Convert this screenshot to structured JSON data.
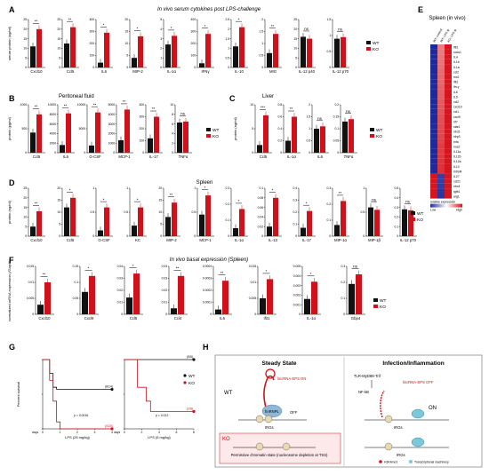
{
  "colors": {
    "wt": "#111111",
    "ko": "#d0101a",
    "heat_low": "#1f2a9a",
    "heat_high": "#d8141e"
  },
  "legend": {
    "wt": "WT",
    "ko": "KO"
  },
  "panels": {
    "A": {
      "letter": "A",
      "title": "In vivo serum cytokines post LPS-challenge",
      "ylabel": "serum protein (ng/ml)",
      "groups": [
        {
          "cat": "Cxcl10",
          "ymax": 25,
          "ticks": [
            0,
            5,
            10,
            15,
            20,
            25
          ],
          "wt": 11,
          "ko": 20,
          "sig": "**"
        },
        {
          "cat": "Ccl5",
          "ymax": 25,
          "ticks": [
            0,
            5,
            10,
            15,
            20,
            25
          ],
          "wt": 12.5,
          "ko": 21,
          "sig": "**"
        },
        {
          "cat": "IL6",
          "ymax": 400,
          "ticks": [
            0,
            100,
            200,
            300,
            400
          ],
          "wt": 40,
          "ko": 290,
          "sig": "*"
        },
        {
          "cat": "MIP-2",
          "ymax": 20,
          "ticks": [
            0,
            5,
            10,
            15,
            20
          ],
          "wt": 4,
          "ko": 13,
          "sig": "*"
        },
        {
          "cat": "IL-1α",
          "ymax": 5,
          "ticks": [
            0,
            1,
            2,
            3,
            4,
            5
          ],
          "wt": 2.4,
          "ko": 3.3,
          "sig": "*"
        },
        {
          "cat": "IFNγ",
          "ymax": 400,
          "ticks": [
            0,
            100,
            200,
            300,
            400
          ],
          "wt": 35,
          "ko": 280,
          "sig": "*"
        },
        {
          "cat": "IL-10",
          "ymax": 2.5,
          "ticks": [
            0,
            0.5,
            1.0,
            1.5,
            2.0,
            2.5
          ],
          "wt": 1.1,
          "ko": 2.1,
          "sig": "*"
        },
        {
          "cat": "MIG",
          "ymax": 2,
          "ticks": [
            0,
            0.5,
            1.0,
            1.5,
            2.0
          ],
          "wt": 0.6,
          "ko": 1.4,
          "sig": "**"
        },
        {
          "cat": "IL-12 p40",
          "ymax": 25,
          "ticks": [
            0,
            5,
            10,
            15,
            20,
            25
          ],
          "wt": 16,
          "ko": 15,
          "sig": "ns"
        },
        {
          "cat": "IL-12 p70",
          "ymax": 1.5,
          "ticks": [
            0,
            0.5,
            1.0,
            1.5
          ],
          "wt": 0.9,
          "ko": 0.95,
          "sig": "ns"
        }
      ]
    },
    "B": {
      "letter": "B",
      "title": "Peritoneal fluid",
      "ylabel": "protein (pg/ml)",
      "groups": [
        {
          "cat": "Ccl5",
          "ymax": 1000,
          "ticks": [
            0,
            500,
            1000
          ],
          "wt": 420,
          "ko": 800,
          "sig": "**"
        },
        {
          "cat": "IL6",
          "ymax": 10000,
          "ticks": [
            0,
            2000,
            4000,
            6000,
            8000,
            10000
          ],
          "wt": 1600,
          "ko": 8200,
          "sig": "**"
        },
        {
          "cat": "G-CSF",
          "ymax": 10000,
          "ticks": [
            0,
            5000,
            10000
          ],
          "wt": 1500,
          "ko": 8400,
          "sig": "**"
        },
        {
          "cat": "MCP-1",
          "ymax": 5000,
          "ticks": [
            0,
            1000,
            2000,
            3000,
            4000,
            5000
          ],
          "wt": 1300,
          "ko": 4500,
          "sig": "**"
        },
        {
          "cat": "IL-17",
          "ymax": 400,
          "ticks": [
            0,
            100,
            200,
            300,
            400
          ],
          "wt": 120,
          "ko": 300,
          "sig": "**"
        },
        {
          "cat": "TNFα",
          "ymax": 10,
          "ticks": [
            0,
            2,
            4,
            6,
            8,
            10
          ],
          "wt": 6.3,
          "ko": 6.5,
          "sig": "ns"
        }
      ]
    },
    "C": {
      "letter": "C",
      "title": "Liver",
      "ylabel": "protein (ng/ml)",
      "groups": [
        {
          "cat": "Ccl5",
          "ymax": 10,
          "ticks": [
            0,
            5,
            10
          ],
          "wt": 1.6,
          "ko": 7.8,
          "sig": "***"
        },
        {
          "cat": "IL-1α",
          "ymax": 0.8,
          "ticks": [
            0,
            0.2,
            0.4,
            0.6,
            0.8
          ],
          "wt": 0.2,
          "ko": 0.6,
          "sig": "**"
        },
        {
          "cat": "IL6",
          "ymax": 2.0,
          "ticks": [
            0,
            0.5,
            1.0,
            1.5,
            2.0
          ],
          "wt": 1.0,
          "ko": 1.1,
          "sig": "ns"
        },
        {
          "cat": "TNFα",
          "ymax": 0.2,
          "ticks": [
            0,
            0.05,
            0.1,
            0.15,
            0.2
          ],
          "wt": 0.13,
          "ko": 0.14,
          "sig": "ns"
        }
      ]
    },
    "D": {
      "letter": "D",
      "title": "Spleen",
      "ylabel": "protein (ng/ml)",
      "groups": [
        {
          "cat": "Cxcl10",
          "ymax": 25,
          "ticks": [
            0,
            5,
            10,
            15,
            20,
            25
          ],
          "wt": 5,
          "ko": 13,
          "sig": "**"
        },
        {
          "cat": "Ccl5",
          "ymax": 20,
          "ticks": [
            0,
            5,
            10,
            15,
            20
          ],
          "wt": 12,
          "ko": 16,
          "sig": "*"
        },
        {
          "cat": "G-CSF",
          "ymax": 1.0,
          "ticks": [
            0,
            0.5,
            1.0
          ],
          "wt": 0.12,
          "ko": 0.6,
          "sig": "*"
        },
        {
          "cat": "KC",
          "ymax": 1.0,
          "ticks": [
            0,
            0.5,
            1.0
          ],
          "wt": 0.22,
          "ko": 0.6,
          "sig": "*"
        },
        {
          "cat": "MIP-2",
          "ymax": 20,
          "ticks": [
            0,
            5,
            10,
            15,
            20
          ],
          "wt": 8,
          "ko": 14,
          "sig": "**"
        },
        {
          "cat": "MCP-1",
          "ymax": 1.0,
          "ticks": [
            0,
            0.5,
            1.0
          ],
          "wt": 0.45,
          "ko": 0.85,
          "sig": "*"
        },
        {
          "cat": "IL-1α",
          "ymax": 0.3,
          "ticks": [
            0,
            0.1,
            0.2,
            0.3
          ],
          "wt": 0.05,
          "ko": 0.17,
          "sig": "*"
        },
        {
          "cat": "IL-13",
          "ymax": 0.1,
          "ticks": [
            0,
            0.02,
            0.04,
            0.06,
            0.08,
            0.1
          ],
          "wt": 0.02,
          "ko": 0.08,
          "sig": "*"
        },
        {
          "cat": "IL-17",
          "ymax": 0.4,
          "ticks": [
            0,
            0.1,
            0.2,
            0.3,
            0.4
          ],
          "wt": 0.07,
          "ko": 0.21,
          "sig": "*"
        },
        {
          "cat": "MIP-1α",
          "ymax": 0.3,
          "ticks": [
            0,
            0.1,
            0.2,
            0.3
          ],
          "wt": 0.07,
          "ko": 0.22,
          "sig": "**"
        },
        {
          "cat": "MIP-1β",
          "ymax": 1.0,
          "ticks": [
            0,
            0.5,
            1.0
          ],
          "wt": 0.6,
          "ko": 0.55,
          "sig": "ns"
        },
        {
          "cat": "IL-12 p70",
          "ymax": 0.5,
          "ticks": [
            0,
            0.1,
            0.2,
            0.3,
            0.4,
            0.5
          ],
          "wt": 0.28,
          "ko": 0.27,
          "sig": "ns"
        }
      ]
    },
    "E": {
      "letter": "E",
      "title": "Spleen (in vivo)",
      "columns": [
        "WT: control",
        "WT: LPS ip",
        "KO: LPS ip"
      ],
      "genes": [
        "lfit1",
        "socs1",
        "IL4",
        "IL1b",
        "IL1a",
        "ccl2",
        "mx2",
        "ifit1",
        "ifn-γ",
        "IL6",
        "IL5",
        "ccl2",
        "cxcl10",
        "ccl1",
        "cxcl9",
        "irf7",
        "stat1",
        "nlrc5",
        "nlrp3",
        "tnfa",
        "nos2",
        "IL11a",
        "IL12b",
        "IL12a",
        "IL10",
        "tnfrsf4",
        "IL27",
        "ccl21",
        "nlrc4",
        "tgfb1",
        "arg1"
      ],
      "legend_label": "relative expression",
      "legend_low": "Low",
      "legend_high": "High"
    },
    "F": {
      "letter": "F",
      "title": "In vivo basal expression (Spleen)",
      "ylabel": "normalized mRNA expression (/Gapdh)",
      "groups": [
        {
          "cat": "Cxcl10",
          "ymax": 0.015,
          "ticks": [
            0,
            0.005,
            0.01,
            0.015
          ],
          "wt": 0.003,
          "ko": 0.01,
          "sig": "**"
        },
        {
          "cat": "Cxcl9",
          "ymax": 0.15,
          "ticks": [
            0,
            0.05,
            0.1,
            0.15
          ],
          "wt": 0.07,
          "ko": 0.12,
          "sig": "*"
        },
        {
          "cat": "Ccl5",
          "ymax": 0.04,
          "ticks": [
            0,
            0.01,
            0.02,
            0.03,
            0.04
          ],
          "wt": 0.014,
          "ko": 0.034,
          "sig": "*"
        },
        {
          "cat": "Ccl4",
          "ymax": 0.04,
          "ticks": [
            0,
            0.01,
            0.02,
            0.03,
            0.04
          ],
          "wt": 0.005,
          "ko": 0.032,
          "sig": "**"
        },
        {
          "cat": "IL6",
          "ymax": 0.0004,
          "ticks": [
            0,
            0.0001,
            0.0002,
            0.0003,
            0.0004
          ],
          "wt": 4e-05,
          "ko": 0.00028,
          "sig": "**"
        },
        {
          "cat": "Ifit1",
          "ymax": 0.015,
          "ticks": [
            0,
            0.005,
            0.01,
            0.015
          ],
          "wt": 0.005,
          "ko": 0.011,
          "sig": "*"
        },
        {
          "cat": "IL-1α",
          "ymax": 0.005,
          "ticks": [
            0,
            0.001,
            0.002,
            0.003,
            0.004,
            0.005
          ],
          "wt": 0.0016,
          "ko": 0.0034,
          "sig": "*"
        },
        {
          "cat": "Gbp4",
          "ymax": 0.3,
          "ticks": [
            0,
            0.1,
            0.2,
            0.3
          ],
          "wt": 0.19,
          "ko": 0.25,
          "sig": "ns"
        }
      ]
    },
    "G": {
      "letter": "G",
      "ylabel": "Percent survival",
      "xlabel_days": "days",
      "plots": [
        {
          "xlabel": "LPS (25 mg/kg)",
          "xticks": [
            0,
            1,
            2,
            3,
            4
          ],
          "wt_label": "(8/14)",
          "ko_label": "(0/20)",
          "p": "p = 0.0016",
          "wt": [
            [
              0,
              100
            ],
            [
              0.4,
              100
            ],
            [
              0.4,
              80
            ],
            [
              0.6,
              80
            ],
            [
              0.6,
              60
            ],
            [
              0.8,
              60
            ],
            [
              0.8,
              57
            ],
            [
              4,
              57
            ]
          ],
          "ko": [
            [
              0,
              100
            ],
            [
              0.4,
              100
            ],
            [
              0.4,
              70
            ],
            [
              0.6,
              70
            ],
            [
              0.6,
              40
            ],
            [
              0.8,
              40
            ],
            [
              0.8,
              10
            ],
            [
              1,
              10
            ],
            [
              1,
              0
            ],
            [
              4,
              0
            ]
          ]
        },
        {
          "xlabel": "LPS (5 mg/kg)",
          "xticks": [
            0,
            2,
            4,
            6,
            8
          ],
          "wt_label": "(5/5)",
          "ko_label": "(2/8)",
          "p": "p = 0.012",
          "wt": [
            [
              0,
              100
            ],
            [
              8,
              100
            ]
          ],
          "ko": [
            [
              0,
              100
            ],
            [
              1.5,
              100
            ],
            [
              1.5,
              60
            ],
            [
              2.5,
              60
            ],
            [
              2.5,
              40
            ],
            [
              3,
              40
            ],
            [
              3,
              25
            ],
            [
              8,
              25
            ]
          ]
        }
      ]
    },
    "H": {
      "letter": "H",
      "steady": "Steady State",
      "infection": "Infection/Inflammation",
      "wt": "WT",
      "ko": "KO",
      "lnc_on": "lincRNA-EPS ON",
      "lnc_off": "lincRNA-EPS OFF",
      "hnrnp": "hnRNPL",
      "off": "OFF",
      "on": "ON",
      "irgs": "IRGs",
      "pathway": "TLR-MyD88-Trif",
      "nfkb": "NF-kB",
      "ko_note": "Permissive chromatin state (nucleosome depletion at TSS)",
      "key1": "H3K4me3",
      "key2": "Transcriptional machinery"
    }
  }
}
